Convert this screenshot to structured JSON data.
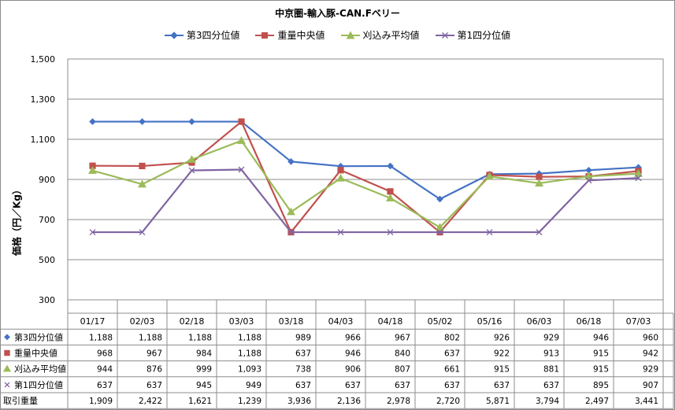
{
  "chart_data": {
    "type": "line",
    "title": "中京圏-輸入豚-CAN.Fベリー",
    "ylabel": "価格（円／Kg）",
    "ylim": [
      300,
      1500
    ],
    "yticks": [
      "300",
      "500",
      "700",
      "900",
      "1,100",
      "1,300",
      "1,500"
    ],
    "categories": [
      "01/17",
      "02/03",
      "02/18",
      "03/03",
      "03/18",
      "04/03",
      "04/18",
      "05/02",
      "05/16",
      "06/03",
      "06/18",
      "07/03"
    ],
    "grid": true,
    "legend_position": "top",
    "series": [
      {
        "name": "第3四分位値",
        "color": "#4472C4",
        "marker": "diamond",
        "values": [
          1188,
          1188,
          1188,
          1188,
          989,
          966,
          967,
          802,
          926,
          929,
          946,
          960
        ]
      },
      {
        "name": "重量中央値",
        "color": "#C0504D",
        "marker": "square",
        "values": [
          968,
          967,
          984,
          1188,
          637,
          946,
          840,
          637,
          922,
          913,
          915,
          942
        ]
      },
      {
        "name": "刈込み平均値",
        "color": "#9BBB59",
        "marker": "triangle",
        "values": [
          944,
          876,
          999,
          1093,
          738,
          906,
          807,
          661,
          915,
          881,
          915,
          929
        ]
      },
      {
        "name": "第1四分位値",
        "color": "#8064A2",
        "marker": "x",
        "values": [
          637,
          637,
          945,
          949,
          637,
          637,
          637,
          637,
          637,
          637,
          895,
          907
        ]
      }
    ],
    "table_rows": [
      {
        "label": "第3四分位値",
        "marker": "diamond",
        "color": "#4472C4",
        "cells": [
          "1,188",
          "1,188",
          "1,188",
          "1,188",
          "989",
          "966",
          "967",
          "802",
          "926",
          "929",
          "946",
          "960"
        ]
      },
      {
        "label": "重量中央値",
        "marker": "square",
        "color": "#C0504D",
        "cells": [
          "968",
          "967",
          "984",
          "1,188",
          "637",
          "946",
          "840",
          "637",
          "922",
          "913",
          "915",
          "942"
        ]
      },
      {
        "label": "刈込み平均値",
        "marker": "triangle",
        "color": "#9BBB59",
        "cells": [
          "944",
          "876",
          "999",
          "1,093",
          "738",
          "906",
          "807",
          "661",
          "915",
          "881",
          "915",
          "929"
        ]
      },
      {
        "label": "第1四分位値",
        "marker": "x",
        "color": "#8064A2",
        "cells": [
          "637",
          "637",
          "945",
          "949",
          "637",
          "637",
          "637",
          "637",
          "637",
          "637",
          "895",
          "907"
        ]
      },
      {
        "label": "取引重量",
        "marker": "",
        "color": "",
        "cells": [
          "1,909",
          "2,422",
          "1,621",
          "1,239",
          "3,936",
          "2,136",
          "2,978",
          "2,720",
          "5,871",
          "3,794",
          "2,497",
          "3,441"
        ]
      }
    ]
  }
}
